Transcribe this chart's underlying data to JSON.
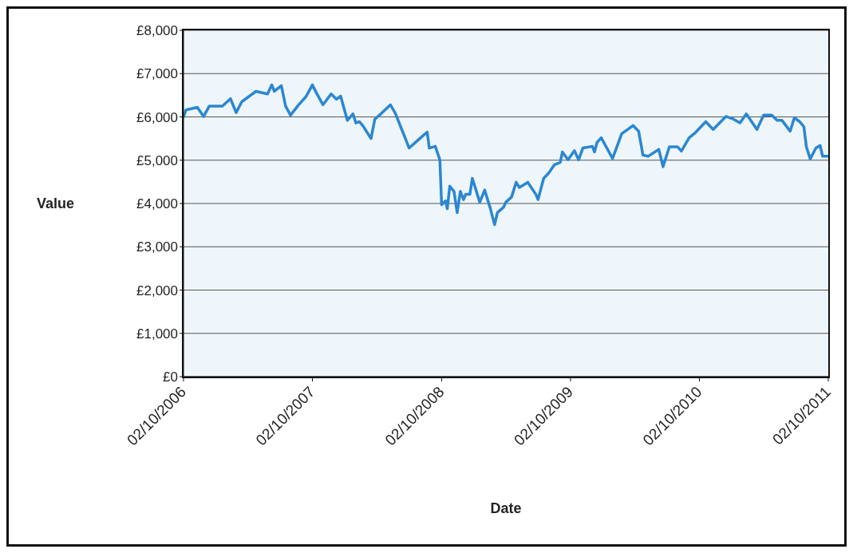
{
  "chart_data": {
    "type": "line",
    "xlabel": "Date",
    "ylabel": "Value",
    "x": [
      "2006-10-02",
      "2006-10-09",
      "2006-11-10",
      "2006-11-28",
      "2006-12-14",
      "2007-01-20",
      "2007-02-12",
      "2007-02-28",
      "2007-03-16",
      "2007-04-25",
      "2007-05-28",
      "2007-06-09",
      "2007-06-16",
      "2007-07-06",
      "2007-07-18",
      "2007-08-01",
      "2007-08-24",
      "2007-09-14",
      "2007-10-02",
      "2007-10-13",
      "2007-11-01",
      "2007-11-24",
      "2007-12-09",
      "2007-12-21",
      "2008-01-09",
      "2008-01-25",
      "2008-02-02",
      "2008-02-12",
      "2008-02-24",
      "2008-03-16",
      "2008-03-27",
      "2008-04-17",
      "2008-05-10",
      "2008-05-24",
      "2008-06-14",
      "2008-07-02",
      "2008-08-01",
      "2008-08-22",
      "2008-08-28",
      "2008-09-14",
      "2008-09-27",
      "2008-10-02",
      "2008-10-13",
      "2008-10-18",
      "2008-10-25",
      "2008-11-06",
      "2008-11-15",
      "2008-11-24",
      "2008-12-03",
      "2008-12-09",
      "2008-12-21",
      "2008-12-28",
      "2009-01-18",
      "2009-02-01",
      "2009-02-16",
      "2009-03-01",
      "2009-03-09",
      "2009-03-26",
      "2009-04-02",
      "2009-04-18",
      "2009-05-01",
      "2009-05-10",
      "2009-06-03",
      "2009-06-26",
      "2009-07-02",
      "2009-07-18",
      "2009-08-01",
      "2009-08-17",
      "2009-09-03",
      "2009-09-09",
      "2009-09-25",
      "2009-10-13",
      "2009-10-25",
      "2009-11-06",
      "2009-12-03",
      "2009-12-09",
      "2009-12-16",
      "2009-12-28",
      "2010-01-29",
      "2010-02-24",
      "2010-03-28",
      "2010-04-13",
      "2010-04-25",
      "2010-05-10",
      "2010-06-09",
      "2010-06-21",
      "2010-07-09",
      "2010-08-01",
      "2010-08-12",
      "2010-09-03",
      "2010-09-21",
      "2010-10-20",
      "2010-11-10",
      "2010-12-16",
      "2011-01-06",
      "2011-01-25",
      "2011-02-12",
      "2011-03-14",
      "2011-04-02",
      "2011-04-25",
      "2011-05-10",
      "2011-05-24",
      "2011-06-16",
      "2011-06-28",
      "2011-07-13",
      "2011-07-25",
      "2011-08-01",
      "2011-08-12",
      "2011-08-28",
      "2011-09-09",
      "2011-09-16",
      "2011-10-02"
    ],
    "series": [
      {
        "color": "#2b87d1",
        "values": [
          6000,
          6160,
          6220,
          6010,
          6250,
          6250,
          6420,
          6100,
          6350,
          6590,
          6530,
          6740,
          6590,
          6720,
          6250,
          6040,
          6280,
          6470,
          6740,
          6560,
          6280,
          6530,
          6410,
          6480,
          5920,
          6070,
          5860,
          5890,
          5770,
          5500,
          5950,
          6100,
          6280,
          6080,
          5650,
          5280,
          5500,
          5650,
          5280,
          5320,
          5010,
          3970,
          4060,
          3880,
          4400,
          4280,
          3790,
          4280,
          4090,
          4210,
          4210,
          4580,
          4030,
          4310,
          3910,
          3510,
          3790,
          3910,
          4030,
          4150,
          4490,
          4370,
          4490,
          4210,
          4090,
          4580,
          4700,
          4890,
          4950,
          5190,
          5010,
          5220,
          5010,
          5280,
          5320,
          5190,
          5410,
          5520,
          5040,
          5610,
          5800,
          5670,
          5120,
          5090,
          5250,
          4850,
          5310,
          5310,
          5210,
          5520,
          5640,
          5890,
          5710,
          6010,
          5950,
          5860,
          6070,
          5710,
          6040,
          6040,
          5920,
          5920,
          5670,
          5980,
          5890,
          5770,
          5310,
          5030,
          5280,
          5340,
          5090,
          5090
        ]
      }
    ],
    "xlim": [
      "2006-10-02",
      "2011-10-02"
    ],
    "xticks": [
      {
        "value": "2006-10-02",
        "label": "02/10/2006"
      },
      {
        "value": "2007-10-02",
        "label": "02/10/2007"
      },
      {
        "value": "2008-10-02",
        "label": "02/10/2008"
      },
      {
        "value": "2009-10-02",
        "label": "02/10/2009"
      },
      {
        "value": "2010-10-02",
        "label": "02/10/2010"
      },
      {
        "value": "2011-10-02",
        "label": "02/10/2011"
      }
    ],
    "ylim": [
      0,
      8000
    ],
    "yticks": [
      {
        "value": 0,
        "label": "£0"
      },
      {
        "value": 1000,
        "label": "£1,000"
      },
      {
        "value": 2000,
        "label": "£2,000"
      },
      {
        "value": 3000,
        "label": "£3,000"
      },
      {
        "value": 4000,
        "label": "£4,000"
      },
      {
        "value": 5000,
        "label": "£5,000"
      },
      {
        "value": 6000,
        "label": "£6,000"
      },
      {
        "value": 7000,
        "label": "£7,000"
      },
      {
        "value": 8000,
        "label": "£8,000"
      }
    ],
    "grid": "y",
    "legend": false,
    "marker": "none",
    "line_style": "solid"
  }
}
